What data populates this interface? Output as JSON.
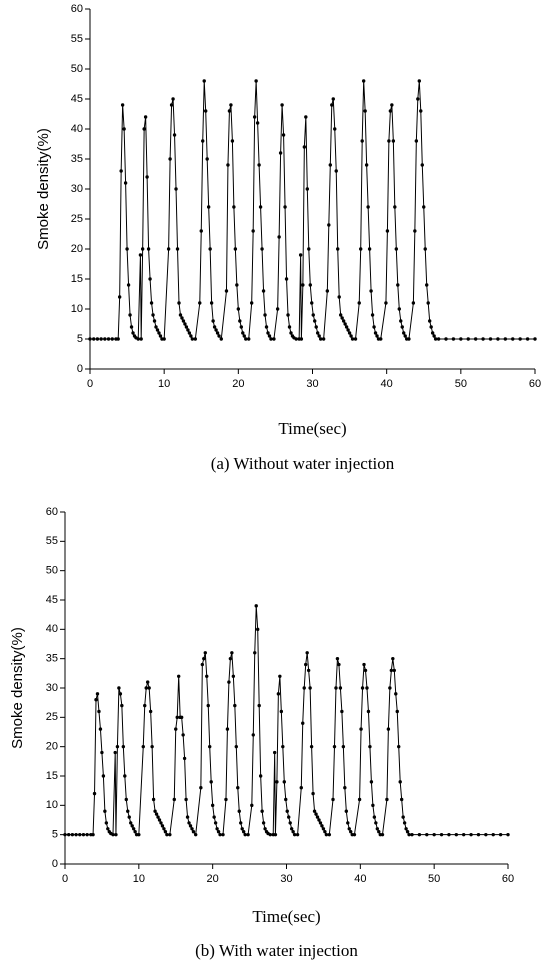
{
  "chart_data": [
    {
      "type": "line",
      "x_label": "Time(sec)",
      "y_label": "Smoke density(%)",
      "caption": "(a) Without water injection",
      "xlim": [
        0,
        60
      ],
      "ylim": [
        0,
        60
      ],
      "xticks": [
        0,
        10,
        20,
        30,
        40,
        50,
        60
      ],
      "yticks": [
        0,
        5,
        10,
        15,
        20,
        25,
        30,
        35,
        40,
        45,
        50,
        55,
        60
      ],
      "color": "#000000",
      "x": [
        0,
        0.5,
        1,
        1.5,
        2,
        2.5,
        3,
        3.5,
        3.8,
        4.0,
        4.2,
        4.4,
        4.6,
        4.8,
        5.0,
        5.2,
        5.4,
        5.6,
        5.8,
        6.0,
        6.2,
        6.5,
        6.8,
        6.9,
        7.1,
        7.3,
        7.5,
        7.7,
        7.9,
        8.1,
        8.3,
        8.5,
        8.7,
        8.9,
        9.1,
        9.3,
        9.5,
        9.7,
        10.0,
        10.6,
        10.8,
        11.0,
        11.2,
        11.4,
        11.6,
        11.8,
        12.0,
        12.2,
        12.4,
        12.6,
        12.8,
        13.0,
        13.2,
        13.4,
        13.6,
        13.8,
        14.2,
        14.8,
        15.0,
        15.2,
        15.4,
        15.6,
        15.8,
        16.0,
        16.2,
        16.4,
        16.6,
        16.8,
        17.0,
        17.2,
        17.4,
        17.7,
        18.4,
        18.6,
        18.8,
        19.0,
        19.2,
        19.4,
        19.6,
        19.8,
        20.0,
        20.2,
        20.4,
        20.6,
        20.8,
        21.0,
        21.4,
        21.8,
        22.0,
        22.2,
        22.4,
        22.6,
        22.8,
        23.0,
        23.2,
        23.4,
        23.6,
        23.8,
        24.0,
        24.2,
        24.4,
        24.8,
        25.3,
        25.5,
        25.7,
        25.9,
        26.1,
        26.3,
        26.5,
        26.7,
        26.9,
        27.1,
        27.3,
        27.5,
        27.8,
        28.2,
        28.4,
        28.5,
        28.7,
        28.9,
        29.1,
        29.3,
        29.5,
        29.7,
        29.9,
        30.1,
        30.3,
        30.5,
        30.7,
        30.9,
        31.1,
        31.5,
        32.0,
        32.2,
        32.4,
        32.6,
        32.8,
        33.0,
        33.2,
        33.4,
        33.6,
        33.8,
        34.0,
        34.2,
        34.4,
        34.6,
        34.8,
        35.0,
        35.2,
        35.4,
        35.8,
        36.3,
        36.5,
        36.7,
        36.9,
        37.1,
        37.3,
        37.5,
        37.7,
        37.9,
        38.1,
        38.3,
        38.5,
        38.7,
        38.9,
        39.2,
        39.9,
        40.1,
        40.3,
        40.5,
        40.7,
        40.9,
        41.1,
        41.3,
        41.5,
        41.7,
        41.9,
        42.1,
        42.3,
        42.5,
        42.7,
        43.0,
        43.6,
        43.8,
        44.0,
        44.2,
        44.4,
        44.6,
        44.8,
        45.0,
        45.2,
        45.4,
        45.6,
        45.8,
        46.0,
        46.2,
        46.4,
        46.6,
        47,
        48,
        49,
        50,
        51,
        52,
        53,
        54,
        55,
        56,
        57,
        58,
        59,
        60
      ],
      "values": [
        5,
        5,
        5,
        5,
        5,
        5,
        5,
        5,
        5,
        12,
        33,
        44,
        40,
        31,
        20,
        14,
        9,
        7,
        6,
        5.5,
        5.2,
        5,
        19,
        5,
        20,
        40,
        42,
        32,
        20,
        15,
        11,
        9,
        8,
        7,
        6.5,
        6,
        5.5,
        5,
        5,
        20,
        35,
        44,
        45,
        39,
        30,
        20,
        11,
        9,
        8.5,
        8,
        7.5,
        7,
        6.5,
        6,
        5.5,
        5,
        5,
        11,
        23,
        38,
        48,
        43,
        35,
        27,
        20,
        11,
        8,
        7,
        6.5,
        6,
        5.5,
        5,
        13,
        34,
        43,
        44,
        38,
        27,
        20,
        14,
        10,
        8,
        7,
        6,
        5.5,
        5,
        5,
        11,
        23,
        42,
        48,
        41,
        34,
        27,
        20,
        13,
        9,
        7,
        6,
        5.5,
        5,
        5,
        10,
        22,
        36,
        44,
        39,
        27,
        15,
        9,
        7,
        6,
        5.5,
        5.2,
        5,
        5,
        19,
        5,
        14,
        37,
        42,
        30,
        20,
        14,
        11,
        9,
        8,
        7,
        6,
        5.5,
        5,
        5,
        13,
        24,
        34,
        44,
        45,
        40,
        33,
        20,
        12,
        9,
        8.5,
        8,
        7.5,
        7,
        6.5,
        6,
        5.5,
        5,
        5,
        11,
        20,
        38,
        48,
        43,
        34,
        27,
        20,
        13,
        9,
        7,
        6,
        5.5,
        5,
        5,
        11,
        23,
        38,
        43,
        44,
        38,
        27,
        20,
        14,
        10,
        8,
        7,
        6,
        5.5,
        5,
        5,
        11,
        23,
        38,
        45,
        48,
        43,
        34,
        27,
        20,
        14,
        11,
        8,
        7,
        6,
        5.5,
        5,
        5,
        5,
        5,
        5,
        5,
        5,
        5,
        5,
        5,
        5,
        5,
        5,
        5,
        5
      ]
    },
    {
      "type": "line",
      "x_label": "Time(sec)",
      "y_label": "Smoke density(%)",
      "caption": "(b) With water injection",
      "xlim": [
        0,
        60
      ],
      "ylim": [
        0,
        60
      ],
      "xticks": [
        0,
        10,
        20,
        30,
        40,
        50,
        60
      ],
      "yticks": [
        0,
        5,
        10,
        15,
        20,
        25,
        30,
        35,
        40,
        45,
        50,
        55,
        60
      ],
      "color": "#000000",
      "x": [
        0,
        0.5,
        1,
        1.5,
        2,
        2.5,
        3,
        3.5,
        3.8,
        4.0,
        4.2,
        4.4,
        4.6,
        4.8,
        5.0,
        5.2,
        5.4,
        5.6,
        5.8,
        6.0,
        6.2,
        6.5,
        6.8,
        6.9,
        7.1,
        7.3,
        7.5,
        7.7,
        7.9,
        8.1,
        8.3,
        8.5,
        8.7,
        8.9,
        9.1,
        9.3,
        9.5,
        9.7,
        10.0,
        10.6,
        10.8,
        11.0,
        11.2,
        11.4,
        11.6,
        11.8,
        12.0,
        12.2,
        12.4,
        12.6,
        12.8,
        13.0,
        13.2,
        13.4,
        13.6,
        13.8,
        14.2,
        14.8,
        15.0,
        15.2,
        15.4,
        15.6,
        15.8,
        16.0,
        16.2,
        16.4,
        16.6,
        16.8,
        17.0,
        17.2,
        17.4,
        17.7,
        18.4,
        18.6,
        18.8,
        19.0,
        19.2,
        19.4,
        19.6,
        19.8,
        20.0,
        20.2,
        20.4,
        20.6,
        20.8,
        21.0,
        21.4,
        21.8,
        22.0,
        22.2,
        22.4,
        22.6,
        22.8,
        23.0,
        23.2,
        23.4,
        23.6,
        23.8,
        24.0,
        24.2,
        24.4,
        24.8,
        25.3,
        25.5,
        25.7,
        25.9,
        26.1,
        26.3,
        26.5,
        26.7,
        26.9,
        27.1,
        27.3,
        27.5,
        27.8,
        28.2,
        28.4,
        28.5,
        28.7,
        28.9,
        29.1,
        29.3,
        29.5,
        29.7,
        29.9,
        30.1,
        30.3,
        30.5,
        30.7,
        30.9,
        31.1,
        31.5,
        32.0,
        32.2,
        32.4,
        32.6,
        32.8,
        33.0,
        33.2,
        33.4,
        33.6,
        33.8,
        34.0,
        34.2,
        34.4,
        34.6,
        34.8,
        35.0,
        35.2,
        35.4,
        35.8,
        36.3,
        36.5,
        36.7,
        36.9,
        37.1,
        37.3,
        37.5,
        37.7,
        37.9,
        38.1,
        38.3,
        38.5,
        38.7,
        38.9,
        39.2,
        39.9,
        40.1,
        40.3,
        40.5,
        40.7,
        40.9,
        41.1,
        41.3,
        41.5,
        41.7,
        41.9,
        42.1,
        42.3,
        42.5,
        42.7,
        43.0,
        43.6,
        43.8,
        44.0,
        44.2,
        44.4,
        44.6,
        44.8,
        45.0,
        45.2,
        45.4,
        45.6,
        45.8,
        46.0,
        46.2,
        46.4,
        46.6,
        47,
        48,
        49,
        50,
        51,
        52,
        53,
        54,
        55,
        56,
        57,
        58,
        59,
        60
      ],
      "values": [
        5,
        5,
        5,
        5,
        5,
        5,
        5,
        5,
        5,
        12,
        28,
        29,
        26,
        23,
        19,
        15,
        9,
        7,
        6,
        5.5,
        5.2,
        5,
        19,
        5,
        20,
        30,
        29,
        27,
        20,
        15,
        11,
        9,
        8,
        7,
        6.5,
        6,
        5.5,
        5,
        5,
        20,
        27,
        30,
        31,
        30,
        26,
        20,
        11,
        9,
        8.5,
        8,
        7.5,
        7,
        6.5,
        6,
        5.5,
        5,
        5,
        11,
        23,
        25,
        32,
        25,
        25,
        22,
        18,
        11,
        8,
        7,
        6.5,
        6,
        5.5,
        5,
        13,
        34,
        35,
        36,
        32,
        27,
        20,
        14,
        10,
        8,
        7,
        6,
        5.5,
        5,
        5,
        11,
        23,
        31,
        35,
        36,
        32,
        27,
        20,
        13,
        9,
        7,
        6,
        5.5,
        5,
        5,
        10,
        22,
        36,
        44,
        40,
        27,
        15,
        9,
        7,
        6,
        5.5,
        5.2,
        5,
        5,
        19,
        5,
        14,
        29,
        32,
        26,
        20,
        14,
        11,
        9,
        8,
        7,
        6,
        5.5,
        5,
        5,
        13,
        24,
        30,
        34,
        36,
        33,
        30,
        20,
        12,
        9,
        8.5,
        8,
        7.5,
        7,
        6.5,
        6,
        5.5,
        5,
        5,
        11,
        20,
        30,
        35,
        34,
        30,
        26,
        20,
        13,
        9,
        7,
        6,
        5.5,
        5,
        5,
        11,
        23,
        30,
        34,
        33,
        30,
        26,
        20,
        14,
        10,
        8,
        7,
        6,
        5.5,
        5,
        5,
        11,
        23,
        30,
        33,
        35,
        33,
        29,
        26,
        20,
        14,
        11,
        8,
        7,
        6,
        5.5,
        5,
        5,
        5,
        5,
        5,
        5,
        5,
        5,
        5,
        5,
        5,
        5,
        5,
        5,
        5
      ]
    }
  ]
}
